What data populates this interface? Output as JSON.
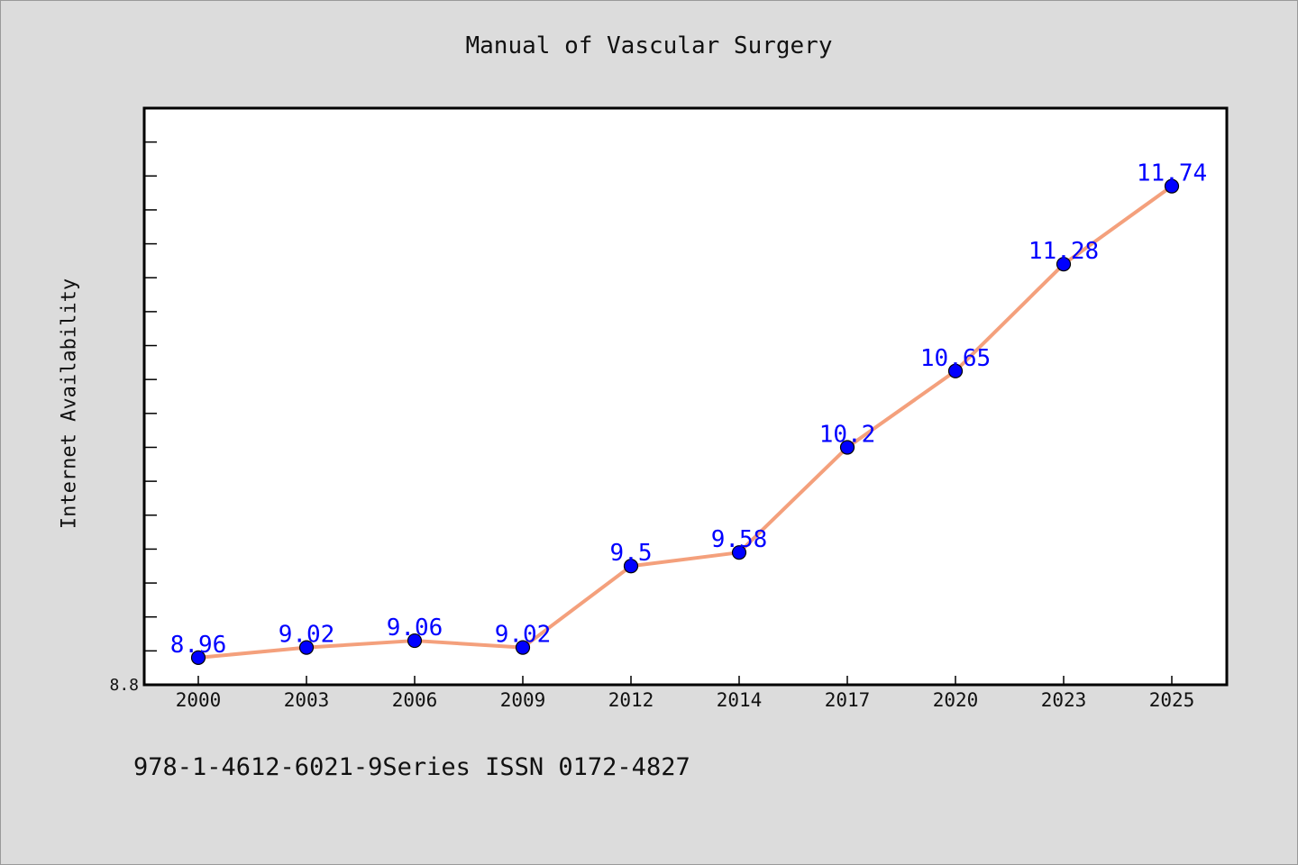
{
  "chart_data": {
    "type": "line",
    "title": "Manual of Vascular Surgery",
    "ylabel": "Internet Availability",
    "xlabel": "",
    "categories": [
      "2000",
      "2003",
      "2006",
      "2009",
      "2012",
      "2014",
      "2017",
      "2020",
      "2023",
      "2025"
    ],
    "series": [
      {
        "values": [
          8.96,
          9.02,
          9.06,
          9.02,
          9.5,
          9.58,
          10.2,
          10.65,
          11.28,
          11.74
        ]
      }
    ],
    "data_labels": [
      "8.96",
      "9.02",
      "9.06",
      "9.02",
      "9.5",
      "9.58",
      "10.2",
      "10.65",
      "11.28",
      "11.74"
    ],
    "ylim": [
      8.8,
      12.2
    ],
    "ytick_labels": [
      "8.8"
    ],
    "grid": false,
    "colors": {
      "line": "#f4a07c",
      "marker": "#0000ff",
      "label": "#0000ff",
      "plot_bg": "#ffffff",
      "page_bg": "#dcdcdc"
    }
  },
  "footer": {
    "note": "978-1-4612-6021-9Series ISSN 0172-4827"
  }
}
